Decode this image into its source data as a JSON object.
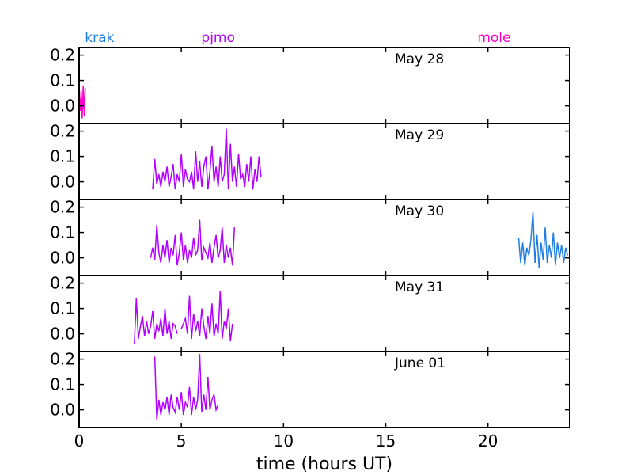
{
  "chart_data": {
    "type": "line",
    "xlabel": "time (hours UT)",
    "xlim": [
      0,
      24
    ],
    "x_ticks": [
      0,
      5,
      10,
      15,
      20
    ],
    "x_tick_labels": [
      "0",
      "5",
      "10",
      "15",
      "20"
    ],
    "ylim": [
      -0.07,
      0.23
    ],
    "y_ticks": [
      0.0,
      0.1,
      0.2
    ],
    "y_tick_labels": [
      "0.0",
      "0.1",
      "0.2"
    ],
    "grid": false,
    "sites": [
      {
        "name": "krak",
        "x": 1.0,
        "color": "#1f7fe0"
      },
      {
        "name": "pjmo",
        "x": 6.8,
        "color": "#b300ff"
      },
      {
        "name": "mole",
        "x": 20.3,
        "color": "#ff00c8"
      }
    ],
    "panels": [
      {
        "date_label": "May 28",
        "series": [
          {
            "site": "mole",
            "color": "#ff00c8",
            "x": [
              0.0,
              0.05,
              0.1,
              0.15,
              0.2,
              0.25,
              0.3
            ],
            "y": [
              0.05,
              -0.02,
              0.06,
              -0.05,
              0.08,
              -0.04,
              0.07
            ]
          }
        ]
      },
      {
        "date_label": "May 29",
        "series": [
          {
            "site": "pjmo",
            "color": "#b300ff",
            "x": [
              3.6,
              3.7,
              3.8,
              3.9,
              4.0,
              4.1,
              4.2,
              4.3,
              4.4,
              4.5,
              4.6,
              4.7,
              4.8,
              4.9,
              5.0,
              5.1,
              5.2,
              5.3,
              5.4,
              5.5,
              5.6,
              5.7,
              5.8,
              5.9,
              6.0,
              6.1,
              6.2,
              6.3,
              6.4,
              6.5,
              6.6,
              6.7,
              6.8,
              6.9,
              7.0,
              7.1,
              7.2,
              7.3,
              7.4,
              7.5,
              7.6,
              7.7,
              7.8,
              7.9,
              8.0,
              8.1,
              8.2,
              8.3,
              8.4,
              8.5,
              8.6,
              8.7,
              8.8,
              8.9
            ],
            "y": [
              -0.03,
              0.09,
              -0.01,
              0.03,
              -0.02,
              0.04,
              0.0,
              0.06,
              -0.02,
              0.02,
              0.07,
              -0.03,
              0.03,
              0.0,
              0.11,
              -0.02,
              0.05,
              0.01,
              0.0,
              0.04,
              -0.03,
              0.12,
              0.0,
              0.08,
              -0.02,
              0.06,
              0.1,
              -0.03,
              0.04,
              0.14,
              0.0,
              0.06,
              -0.02,
              0.1,
              0.0,
              0.03,
              0.21,
              -0.03,
              0.15,
              0.0,
              0.06,
              -0.02,
              0.11,
              0.01,
              0.03,
              -0.02,
              0.07,
              0.0,
              0.1,
              -0.03,
              0.05,
              0.0,
              0.1,
              0.02
            ]
          }
        ]
      },
      {
        "date_label": "May 30",
        "series": [
          {
            "site": "pjmo",
            "color": "#b300ff",
            "x": [
              3.5,
              3.6,
              3.7,
              3.8,
              3.9,
              4.0,
              4.1,
              4.2,
              4.3,
              4.4,
              4.5,
              4.6,
              4.7,
              4.8,
              4.9,
              5.0,
              5.1,
              5.2,
              5.3,
              5.4,
              5.5,
              5.6,
              5.7,
              5.8,
              5.9,
              6.0,
              6.1,
              6.2,
              6.3,
              6.4,
              6.5,
              6.6,
              6.7,
              6.8,
              6.9,
              7.0,
              7.1,
              7.2,
              7.3,
              7.4,
              7.5,
              7.6
            ],
            "y": [
              0.0,
              0.04,
              -0.01,
              0.13,
              0.02,
              -0.02,
              0.05,
              0.0,
              0.07,
              -0.02,
              0.04,
              0.01,
              0.09,
              -0.03,
              0.02,
              0.1,
              -0.01,
              0.05,
              -0.02,
              0.03,
              0.0,
              0.08,
              0.01,
              0.03,
              0.15,
              -0.01,
              0.04,
              0.02,
              0.0,
              0.06,
              -0.02,
              0.04,
              0.09,
              0.0,
              0.03,
              0.12,
              -0.02,
              0.05,
              0.0,
              0.04,
              -0.03,
              0.12
            ]
          },
          {
            "site": "krak",
            "color": "#1f7fe0",
            "x": [
              21.5,
              21.6,
              21.7,
              21.8,
              21.9,
              22.0,
              22.1,
              22.2,
              22.3,
              22.4,
              22.5,
              22.6,
              22.7,
              22.8,
              22.9,
              23.0,
              23.1,
              23.2,
              23.3,
              23.4,
              23.5,
              23.6,
              23.7,
              23.8,
              23.9
            ],
            "y": [
              0.08,
              -0.02,
              0.06,
              -0.03,
              0.04,
              0.01,
              0.07,
              0.18,
              -0.02,
              0.09,
              -0.04,
              0.06,
              -0.01,
              0.12,
              -0.02,
              0.05,
              0.0,
              0.1,
              -0.03,
              0.06,
              0.0,
              0.05,
              -0.02,
              0.04,
              0.01
            ]
          }
        ]
      },
      {
        "date_label": "May 31",
        "series": [
          {
            "site": "pjmo",
            "color": "#b300ff",
            "x": [
              2.7,
              2.8,
              2.9,
              3.0,
              3.1,
              3.2,
              3.3,
              3.4,
              3.5,
              3.6,
              3.7,
              3.8,
              3.9,
              4.0,
              4.1,
              4.2,
              4.3,
              4.4,
              4.5,
              4.6,
              4.7,
              4.8,
              4.9,
              5.0,
              5.1,
              5.2,
              5.3,
              5.4,
              5.5,
              5.6,
              5.7,
              5.8,
              5.9,
              6.0,
              6.1,
              6.2,
              6.3,
              6.4,
              6.5,
              6.6,
              6.7,
              6.8,
              6.9,
              7.0,
              7.1,
              7.2,
              7.3,
              7.4,
              7.5
            ],
            "y": [
              -0.04,
              0.14,
              -0.02,
              0.03,
              0.07,
              -0.01,
              0.05,
              0.0,
              0.03,
              0.09,
              -0.02,
              0.04,
              0.01,
              0.06,
              -0.01,
              0.1,
              0.0,
              0.05,
              -0.02,
              0.04,
              0.03,
              0.0,
              null,
              0.02,
              0.04,
              0.06,
              0.0,
              0.15,
              -0.02,
              0.08,
              0.01,
              0.05,
              -0.01,
              0.1,
              0.03,
              -0.02,
              0.07,
              0.0,
              0.12,
              -0.01,
              0.04,
              0.0,
              0.17,
              -0.02,
              0.05,
              0.02,
              0.1,
              -0.03,
              0.04
            ]
          }
        ]
      },
      {
        "date_label": "June 01",
        "series": [
          {
            "site": "pjmo",
            "color": "#b300ff",
            "x": [
              3.7,
              3.8,
              3.9,
              4.0,
              4.1,
              4.2,
              4.3,
              4.4,
              4.5,
              4.6,
              4.7,
              4.8,
              4.9,
              5.0,
              5.1,
              5.2,
              5.3,
              5.4,
              5.5,
              5.6,
              5.7,
              5.8,
              5.9,
              6.0,
              6.1,
              6.2,
              6.3,
              6.4,
              6.5,
              6.6,
              6.7,
              6.8
            ],
            "y": [
              0.21,
              -0.04,
              0.04,
              -0.02,
              0.03,
              0.0,
              0.05,
              -0.02,
              0.06,
              0.01,
              -0.01,
              0.05,
              0.0,
              0.07,
              -0.02,
              0.03,
              0.01,
              0.09,
              -0.02,
              0.05,
              0.0,
              0.04,
              0.22,
              -0.01,
              0.06,
              0.0,
              0.13,
              0.0,
              0.04,
              0.06,
              0.0,
              0.02
            ]
          }
        ]
      }
    ]
  }
}
